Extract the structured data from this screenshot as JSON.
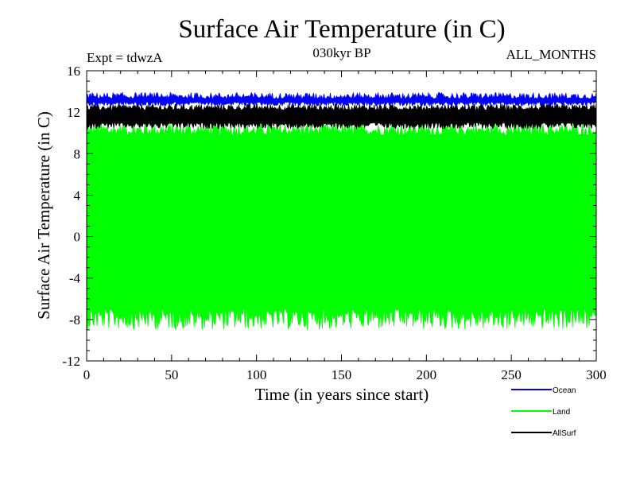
{
  "chart_data": {
    "type": "area",
    "title": "Surface Air Temperature (in C)",
    "subtitle_left": "Expt = tdwzA",
    "subtitle_center": "030kyr BP",
    "subtitle_right": "ALL_MONTHS",
    "xlabel": "Time (in years since start)",
    "ylabel": "Surface Air Temperature (in C)",
    "xlim": [
      0,
      300
    ],
    "ylim": [
      -12,
      16
    ],
    "xticks": [
      0,
      50,
      100,
      150,
      200,
      250,
      300
    ],
    "yticks": [
      -12,
      -8,
      -4,
      0,
      4,
      8,
      12,
      16
    ],
    "grid": false,
    "legend_position": "bottom-right",
    "x_resolution": "monthly values over 300 years",
    "series": [
      {
        "name": "Ocean",
        "color": "#0000ff",
        "min_range": [
          12.6,
          13.0
        ],
        "max_range": [
          13.3,
          13.9
        ]
      },
      {
        "name": "Land",
        "color": "#00ff00",
        "min_range": [
          -9.0,
          -7.0
        ],
        "max_range": [
          9.8,
          11.0
        ]
      },
      {
        "name": "AllSurf",
        "color": "#000000",
        "min_range": [
          10.4,
          11.0
        ],
        "max_range": [
          12.2,
          12.8
        ]
      }
    ]
  }
}
